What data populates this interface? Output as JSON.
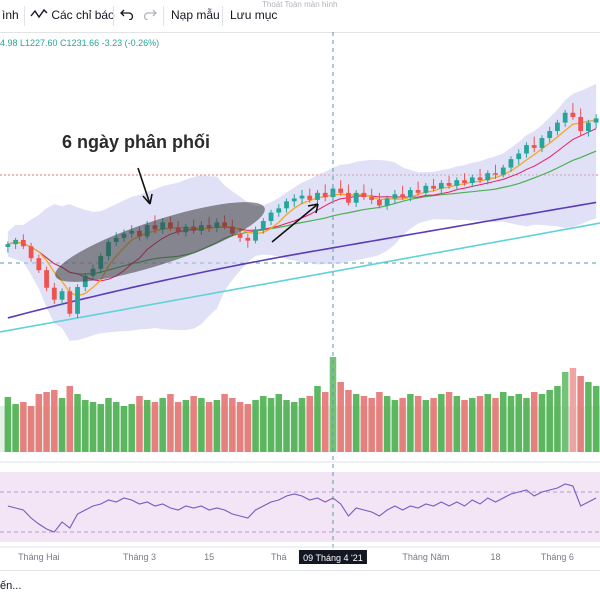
{
  "toolbar": {
    "item_left": "ình",
    "indicators_label": "Các chỉ báo",
    "undo_icon": "undo-icon",
    "redo_icon": "redo-icon",
    "template_label": "Nạp mẫu",
    "save_label": "Lưu mục",
    "fullscreen_tip": "Thoát Toàn màn hình"
  },
  "ohlc_text": "4.98  L1227.60  C1231.66  -3.23 (-0.26%)",
  "bottom_text": "ến...",
  "colors": {
    "up": "#26a69a",
    "down": "#ef5350",
    "ma_fast": "#f5a623",
    "ma_mid": "#e91e63",
    "ma_slow": "#4caf50",
    "ma_long": "#5b3bb7",
    "trend": "#5fd3d6",
    "band": "#c7c9ef",
    "rsi": "#7e57c2",
    "rsi_bg": "#f3e5f5"
  },
  "chart_data": {
    "type": "candlestick",
    "annotation": "6 ngày phân phối",
    "x_tick_labels": [
      {
        "label": "Tháng Hai",
        "i": 4
      },
      {
        "label": "Tháng 3",
        "i": 17
      },
      {
        "label": "15",
        "i": 26
      },
      {
        "label": "Thá",
        "i": 35
      },
      {
        "label": "Tháng Năm",
        "i": 54
      },
      {
        "label": "18",
        "i": 63
      },
      {
        "label": "Tháng 6",
        "i": 71
      }
    ],
    "crosshair_label": "09 Tháng 4 '21",
    "crosshair_index": 42,
    "price_range": [
      1020,
      1390
    ],
    "candles": [
      [
        1141,
        1149,
        1133,
        1145
      ],
      [
        1145,
        1154,
        1138,
        1151
      ],
      [
        1151,
        1159,
        1138,
        1142
      ],
      [
        1142,
        1147,
        1120,
        1125
      ],
      [
        1125,
        1130,
        1104,
        1108
      ],
      [
        1108,
        1113,
        1078,
        1083
      ],
      [
        1083,
        1090,
        1060,
        1066
      ],
      [
        1066,
        1082,
        1058,
        1078
      ],
      [
        1078,
        1084,
        1042,
        1046
      ],
      [
        1046,
        1088,
        1040,
        1084
      ],
      [
        1084,
        1104,
        1078,
        1100
      ],
      [
        1100,
        1116,
        1094,
        1110
      ],
      [
        1110,
        1132,
        1104,
        1128
      ],
      [
        1128,
        1152,
        1122,
        1148
      ],
      [
        1148,
        1162,
        1142,
        1154
      ],
      [
        1154,
        1166,
        1148,
        1160
      ],
      [
        1160,
        1172,
        1154,
        1164
      ],
      [
        1164,
        1170,
        1150,
        1156
      ],
      [
        1156,
        1178,
        1152,
        1172
      ],
      [
        1172,
        1186,
        1160,
        1166
      ],
      [
        1166,
        1182,
        1160,
        1176
      ],
      [
        1176,
        1184,
        1164,
        1168
      ],
      [
        1168,
        1178,
        1158,
        1162
      ],
      [
        1162,
        1174,
        1156,
        1170
      ],
      [
        1170,
        1180,
        1160,
        1164
      ],
      [
        1164,
        1178,
        1158,
        1172
      ],
      [
        1172,
        1184,
        1162,
        1168
      ],
      [
        1168,
        1182,
        1162,
        1176
      ],
      [
        1176,
        1186,
        1166,
        1170
      ],
      [
        1170,
        1180,
        1156,
        1160
      ],
      [
        1160,
        1168,
        1148,
        1154
      ],
      [
        1154,
        1160,
        1140,
        1150
      ],
      [
        1150,
        1170,
        1146,
        1166
      ],
      [
        1166,
        1182,
        1160,
        1178
      ],
      [
        1178,
        1194,
        1172,
        1190
      ],
      [
        1190,
        1202,
        1184,
        1196
      ],
      [
        1196,
        1210,
        1190,
        1206
      ],
      [
        1206,
        1216,
        1198,
        1210
      ],
      [
        1210,
        1222,
        1202,
        1214
      ],
      [
        1214,
        1224,
        1204,
        1208
      ],
      [
        1208,
        1222,
        1202,
        1218
      ],
      [
        1218,
        1230,
        1206,
        1212
      ],
      [
        1212,
        1228,
        1206,
        1224
      ],
      [
        1224,
        1236,
        1214,
        1218
      ],
      [
        1218,
        1230,
        1200,
        1204
      ],
      [
        1204,
        1222,
        1198,
        1218
      ],
      [
        1218,
        1230,
        1208,
        1212
      ],
      [
        1212,
        1224,
        1202,
        1208
      ],
      [
        1208,
        1218,
        1196,
        1200
      ],
      [
        1200,
        1214,
        1194,
        1210
      ],
      [
        1210,
        1222,
        1202,
        1216
      ],
      [
        1216,
        1228,
        1208,
        1212
      ],
      [
        1212,
        1226,
        1206,
        1222
      ],
      [
        1222,
        1234,
        1214,
        1218
      ],
      [
        1218,
        1232,
        1212,
        1228
      ],
      [
        1228,
        1238,
        1220,
        1224
      ],
      [
        1224,
        1236,
        1216,
        1232
      ],
      [
        1232,
        1242,
        1224,
        1228
      ],
      [
        1228,
        1240,
        1222,
        1236
      ],
      [
        1236,
        1246,
        1228,
        1232
      ],
      [
        1232,
        1244,
        1226,
        1240
      ],
      [
        1240,
        1252,
        1232,
        1236
      ],
      [
        1236,
        1250,
        1230,
        1246
      ],
      [
        1246,
        1258,
        1238,
        1244
      ],
      [
        1244,
        1258,
        1240,
        1254
      ],
      [
        1254,
        1270,
        1248,
        1266
      ],
      [
        1266,
        1280,
        1258,
        1274
      ],
      [
        1274,
        1290,
        1268,
        1286
      ],
      [
        1286,
        1298,
        1276,
        1282
      ],
      [
        1282,
        1300,
        1276,
        1296
      ],
      [
        1296,
        1312,
        1290,
        1306
      ],
      [
        1306,
        1322,
        1300,
        1318
      ],
      [
        1318,
        1336,
        1312,
        1332
      ],
      [
        1332,
        1346,
        1322,
        1326
      ],
      [
        1326,
        1338,
        1300,
        1306
      ],
      [
        1306,
        1322,
        1298,
        1318
      ],
      [
        1318,
        1330,
        1310,
        1324
      ]
    ],
    "volume": [
      55,
      48,
      50,
      46,
      58,
      60,
      62,
      54,
      66,
      58,
      52,
      50,
      48,
      54,
      50,
      46,
      48,
      56,
      52,
      50,
      54,
      58,
      50,
      52,
      56,
      54,
      50,
      52,
      58,
      54,
      50,
      48,
      52,
      56,
      54,
      58,
      52,
      50,
      54,
      56,
      66,
      60,
      95,
      70,
      62,
      58,
      56,
      54,
      60,
      56,
      52,
      54,
      58,
      56,
      52,
      54,
      58,
      60,
      56,
      52,
      54,
      56,
      58,
      54,
      60,
      56,
      58,
      54,
      60,
      58,
      62,
      66,
      80,
      84,
      76,
      70,
      66
    ],
    "volume_range": [
      0,
      110
    ],
    "rsi": [
      56,
      54,
      52,
      44,
      38,
      33,
      30,
      40,
      34,
      48,
      52,
      56,
      58,
      62,
      60,
      64,
      62,
      58,
      60,
      56,
      58,
      54,
      52,
      56,
      54,
      56,
      52,
      54,
      52,
      48,
      46,
      44,
      52,
      56,
      60,
      62,
      66,
      68,
      66,
      62,
      64,
      60,
      64,
      58,
      46,
      54,
      52,
      50,
      46,
      52,
      56,
      52,
      56,
      54,
      58,
      56,
      60,
      56,
      60,
      56,
      62,
      58,
      64,
      60,
      64,
      68,
      70,
      72,
      66,
      70,
      72,
      74,
      78,
      76,
      56,
      60,
      64
    ],
    "rsi_range": [
      20,
      90
    ]
  }
}
